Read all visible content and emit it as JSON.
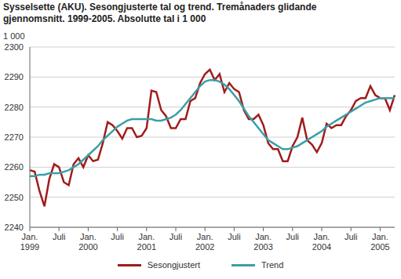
{
  "chart_data": {
    "type": "line",
    "title": "Sysselsette (AKU).  Sesongjusterte tal og trend. Tremånaders glidande\ngjennomsnitt. 1999-2005. Absolutte tal i 1 000",
    "y_label": "1 000",
    "categories": [
      "Jan. 1999",
      null,
      null,
      null,
      null,
      null,
      "Juli",
      null,
      null,
      null,
      null,
      null,
      "Jan. 2000",
      null,
      null,
      null,
      null,
      null,
      "Juli",
      null,
      null,
      null,
      null,
      null,
      "Jan. 2001",
      null,
      null,
      null,
      null,
      null,
      "Juli",
      null,
      null,
      null,
      null,
      null,
      "Jan. 2002",
      null,
      null,
      null,
      null,
      null,
      "Juli",
      null,
      null,
      null,
      null,
      null,
      "Jan. 2003",
      null,
      null,
      null,
      null,
      null,
      "Juli",
      null,
      null,
      null,
      null,
      null,
      "Jan. 2004",
      null,
      null,
      null,
      null,
      null,
      "Juli",
      null,
      null,
      null,
      null,
      null,
      "Jan. 2005",
      null,
      null,
      null
    ],
    "series": [
      {
        "name": "Sesongjustert",
        "color": "#a01c1c",
        "values": [
          2259,
          2258.5,
          2252,
          2247,
          2256,
          2261,
          2260,
          2255,
          2254,
          2261,
          2263,
          2260,
          2264,
          2262,
          2262.5,
          2268,
          2275,
          2274,
          2272,
          2269.5,
          2273,
          2273,
          2270,
          2270.5,
          2273,
          2285.5,
          2285,
          2279,
          2277,
          2273,
          2273,
          2276,
          2276,
          2282,
          2283,
          2288,
          2291,
          2292.5,
          2289,
          2291,
          2285,
          2288,
          2286,
          2285,
          2279,
          2276,
          2276,
          2277.5,
          2274,
          2268,
          2266,
          2266,
          2262,
          2262,
          2267,
          2270,
          2276.5,
          2269,
          2267.5,
          2265,
          2268,
          2274.5,
          2273,
          2274,
          2274,
          2277,
          2279,
          2282,
          2283,
          2283,
          2287,
          2284,
          2283,
          2283,
          2279,
          2284
        ]
      },
      {
        "name": "Trend",
        "color": "#3a9fa6",
        "values": [
          2257,
          2257,
          2257.5,
          2257.5,
          2258,
          2258,
          2258,
          2258.5,
          2259,
          2260,
          2261,
          2262.5,
          2264,
          2265.5,
          2267,
          2269,
          2270.5,
          2272,
          2273.5,
          2274.5,
          2275.5,
          2276,
          2276,
          2276,
          2276,
          2276,
          2275.5,
          2275.5,
          2276,
          2276.5,
          2277.5,
          2279,
          2281,
          2283,
          2285,
          2287,
          2288.5,
          2289,
          2289,
          2288.5,
          2287.5,
          2286,
          2284,
          2282,
          2279.5,
          2277,
          2275,
          2273,
          2271,
          2269,
          2268,
          2267,
          2266,
          2266,
          2266.5,
          2267,
          2268,
          2269,
          2270,
          2271,
          2272,
          2273.5,
          2274.5,
          2275.5,
          2276.5,
          2277.5,
          2278.5,
          2279.5,
          2280.5,
          2281.5,
          2282,
          2282.5,
          2283,
          2283,
          2283,
          2283
        ]
      }
    ],
    "ylim": [
      2240,
      2300
    ],
    "yticks": [
      2240,
      2250,
      2260,
      2270,
      2280,
      2290,
      2300
    ],
    "grid": true,
    "legend": "bottom"
  }
}
